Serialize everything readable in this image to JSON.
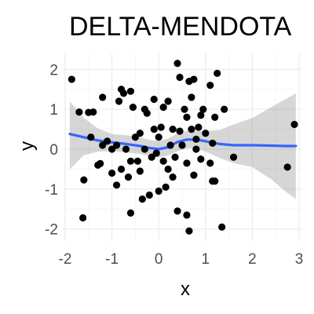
{
  "chart_data": {
    "type": "scatter",
    "title": "DELTA-MENDOTA",
    "xlabel": "x",
    "ylabel": "y",
    "xlim": [
      -2.05,
      3.05
    ],
    "ylim": [
      -2.3,
      2.4
    ],
    "x_ticks": [
      -2,
      -1,
      0,
      1,
      2,
      3
    ],
    "y_ticks": [
      -2,
      -1,
      0,
      1,
      2
    ],
    "x_tick_labels": [
      "-2",
      "-1",
      "0",
      "1",
      "2",
      "3"
    ],
    "y_tick_labels": [
      "-2",
      "-1",
      "0",
      "1",
      "2"
    ],
    "grid": true,
    "theme": "minimal",
    "colors": {
      "points": "#000000",
      "smooth_line": "#3366ff",
      "confidence_band": "#999999",
      "grid_major": "#ebebeb",
      "grid_minor": "#f5f5f5"
    },
    "points": [
      {
        "x": -1.86,
        "y": 1.75
      },
      {
        "x": -1.7,
        "y": 0.93
      },
      {
        "x": -1.6,
        "y": -0.77
      },
      {
        "x": -1.62,
        "y": -1.72
      },
      {
        "x": -1.5,
        "y": 0.92
      },
      {
        "x": -1.4,
        "y": 0.93
      },
      {
        "x": -1.45,
        "y": 0.3
      },
      {
        "x": -1.3,
        "y": -0.4
      },
      {
        "x": -1.25,
        "y": -0.36
      },
      {
        "x": -1.2,
        "y": 1.3
      },
      {
        "x": -1.2,
        "y": 0.1
      },
      {
        "x": -1.1,
        "y": 0.2
      },
      {
        "x": -1.0,
        "y": -0.6
      },
      {
        "x": -1.0,
        "y": 0.0
      },
      {
        "x": -0.9,
        "y": -0.9
      },
      {
        "x": -0.9,
        "y": 0.1
      },
      {
        "x": -0.85,
        "y": 1.2
      },
      {
        "x": -0.8,
        "y": 1.5
      },
      {
        "x": -0.75,
        "y": 1.4
      },
      {
        "x": -0.8,
        "y": -0.5
      },
      {
        "x": -0.7,
        "y": 0.0
      },
      {
        "x": -0.65,
        "y": -0.7
      },
      {
        "x": -0.6,
        "y": -0.3
      },
      {
        "x": -0.6,
        "y": 1.45
      },
      {
        "x": -0.55,
        "y": 1.05
      },
      {
        "x": -0.6,
        "y": -1.6
      },
      {
        "x": -0.5,
        "y": 0.3
      },
      {
        "x": -0.45,
        "y": -0.3
      },
      {
        "x": -0.4,
        "y": 0.4
      },
      {
        "x": -0.4,
        "y": -0.55
      },
      {
        "x": -0.35,
        "y": -1.25
      },
      {
        "x": -0.3,
        "y": 1.0
      },
      {
        "x": -0.3,
        "y": 0.0
      },
      {
        "x": -0.25,
        "y": 0.9
      },
      {
        "x": -0.2,
        "y": -1.15
      },
      {
        "x": -0.15,
        "y": -0.2
      },
      {
        "x": -0.1,
        "y": 1.25
      },
      {
        "x": -0.1,
        "y": 0.5
      },
      {
        "x": -0.05,
        "y": -0.1
      },
      {
        "x": 0.0,
        "y": -1.05
      },
      {
        "x": 0.0,
        "y": 0.3
      },
      {
        "x": 0.05,
        "y": 0.55
      },
      {
        "x": 0.1,
        "y": 1.05
      },
      {
        "x": 0.1,
        "y": -0.3
      },
      {
        "x": 0.15,
        "y": -0.95
      },
      {
        "x": 0.2,
        "y": -0.5
      },
      {
        "x": 0.2,
        "y": 1.2
      },
      {
        "x": 0.25,
        "y": 0.1
      },
      {
        "x": 0.3,
        "y": -0.7
      },
      {
        "x": 0.3,
        "y": 0.5
      },
      {
        "x": 0.35,
        "y": -0.2
      },
      {
        "x": 0.4,
        "y": 2.15
      },
      {
        "x": 0.4,
        "y": -1.55
      },
      {
        "x": 0.45,
        "y": 1.8
      },
      {
        "x": 0.45,
        "y": 0.45
      },
      {
        "x": 0.5,
        "y": 0.1
      },
      {
        "x": 0.55,
        "y": 1.0
      },
      {
        "x": 0.6,
        "y": -0.35
      },
      {
        "x": 0.6,
        "y": 0.8
      },
      {
        "x": 0.6,
        "y": -1.65
      },
      {
        "x": 0.65,
        "y": 1.7
      },
      {
        "x": 0.65,
        "y": -2.05
      },
      {
        "x": 0.7,
        "y": 1.3
      },
      {
        "x": 0.7,
        "y": 0.5
      },
      {
        "x": 0.75,
        "y": 1.75
      },
      {
        "x": 0.75,
        "y": -0.65
      },
      {
        "x": 0.8,
        "y": 0.0
      },
      {
        "x": 0.8,
        "y": 0.25
      },
      {
        "x": 0.85,
        "y": 0.55
      },
      {
        "x": 0.9,
        "y": 0.85
      },
      {
        "x": 0.9,
        "y": -0.25
      },
      {
        "x": 0.95,
        "y": 1.0
      },
      {
        "x": 1.0,
        "y": 0.4
      },
      {
        "x": 1.1,
        "y": 1.6
      },
      {
        "x": 1.1,
        "y": -0.35
      },
      {
        "x": 1.15,
        "y": 0.15
      },
      {
        "x": 1.15,
        "y": -0.8
      },
      {
        "x": 1.2,
        "y": 0.8
      },
      {
        "x": 1.2,
        "y": -0.8
      },
      {
        "x": 1.25,
        "y": 1.9
      },
      {
        "x": 1.35,
        "y": -1.95
      },
      {
        "x": 1.4,
        "y": 1.0
      },
      {
        "x": 1.6,
        "y": -0.2
      },
      {
        "x": 2.75,
        "y": -0.45
      },
      {
        "x": 2.9,
        "y": 0.62
      }
    ],
    "smooth_series": [
      {
        "x": -1.9,
        "y": 0.38,
        "lower": -0.5,
        "upper": 1.2
      },
      {
        "x": -1.6,
        "y": 0.3,
        "lower": -0.15,
        "upper": 0.78
      },
      {
        "x": -1.3,
        "y": 0.22,
        "lower": -0.06,
        "upper": 0.52
      },
      {
        "x": -1.0,
        "y": 0.17,
        "lower": -0.05,
        "upper": 0.38
      },
      {
        "x": -0.7,
        "y": 0.13,
        "lower": -0.08,
        "upper": 0.35
      },
      {
        "x": -0.4,
        "y": 0.08,
        "lower": -0.12,
        "upper": 0.3
      },
      {
        "x": -0.2,
        "y": 0.03,
        "lower": -0.17,
        "upper": 0.23
      },
      {
        "x": 0.0,
        "y": 0.0,
        "lower": -0.2,
        "upper": 0.2
      },
      {
        "x": 0.2,
        "y": 0.05,
        "lower": -0.16,
        "upper": 0.26
      },
      {
        "x": 0.4,
        "y": 0.18,
        "lower": -0.05,
        "upper": 0.4
      },
      {
        "x": 0.6,
        "y": 0.24,
        "lower": 0.02,
        "upper": 0.46
      },
      {
        "x": 0.8,
        "y": 0.24,
        "lower": 0.02,
        "upper": 0.46
      },
      {
        "x": 1.0,
        "y": 0.2,
        "lower": -0.06,
        "upper": 0.46
      },
      {
        "x": 1.3,
        "y": 0.13,
        "lower": -0.22,
        "upper": 0.48
      },
      {
        "x": 1.6,
        "y": 0.1,
        "lower": -0.35,
        "upper": 0.62
      },
      {
        "x": 2.0,
        "y": 0.1,
        "lower": -0.45,
        "upper": 0.78
      },
      {
        "x": 2.4,
        "y": 0.09,
        "lower": -0.75,
        "upper": 1.05
      },
      {
        "x": 2.7,
        "y": 0.08,
        "lower": -1.05,
        "upper": 1.25
      },
      {
        "x": 2.93,
        "y": 0.08,
        "lower": -1.25,
        "upper": 1.4
      }
    ]
  }
}
